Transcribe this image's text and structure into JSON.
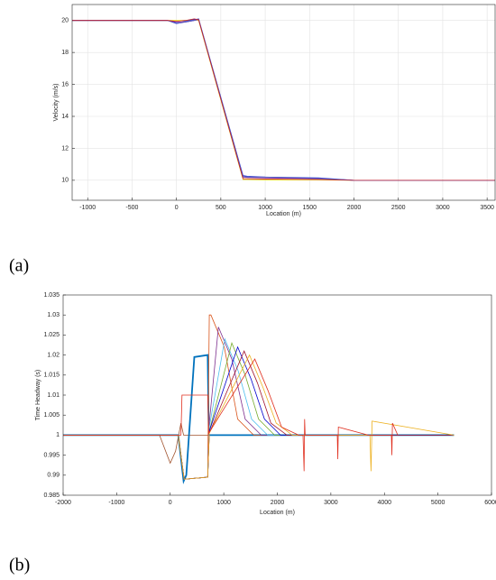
{
  "chart_data": [
    {
      "type": "line",
      "label": "(a)",
      "xlabel": "Location (m)",
      "ylabel": "Velocity (m/s)",
      "grid": true,
      "xlim": [
        -1175,
        3590
      ],
      "ylim": [
        8.75,
        21
      ],
      "xticks": [
        -1000,
        -500,
        0,
        500,
        1000,
        1500,
        2000,
        2500,
        3000,
        3500
      ],
      "yticks": [
        10,
        12,
        14,
        16,
        18,
        20
      ],
      "x": [
        -1175,
        -100,
        0,
        100,
        200,
        250,
        750,
        800,
        1000,
        1600,
        2000,
        2500,
        3590
      ],
      "series": [
        {
          "color": "#f0e000",
          "values": [
            20,
            20,
            20,
            20,
            20.05,
            20,
            10.05,
            10.05,
            10.03,
            10.02,
            10,
            10,
            10
          ]
        },
        {
          "color": "#3040d0",
          "values": [
            20,
            20,
            19.85,
            19.95,
            20.05,
            20.1,
            10.3,
            10.25,
            10.2,
            10.15,
            10,
            10,
            10
          ]
        },
        {
          "color": "#8040a0",
          "values": [
            20,
            20,
            19.9,
            19.9,
            20,
            20.05,
            10.2,
            10.18,
            10.15,
            10.1,
            10,
            10,
            10
          ]
        },
        {
          "color": "#5050c0",
          "values": [
            20,
            20,
            19.8,
            19.9,
            20,
            20.1,
            10.25,
            10.2,
            10.2,
            10.12,
            10,
            10,
            10
          ]
        },
        {
          "color": "#c02030",
          "values": [
            20,
            20,
            19.95,
            20,
            20.1,
            20.05,
            10.1,
            10.1,
            10.08,
            10.05,
            10,
            10,
            10
          ]
        }
      ]
    },
    {
      "type": "line",
      "label": "(b)",
      "xlabel": "Location (m)",
      "ylabel": "Time Headway (s)",
      "grid": false,
      "xlim": [
        -2000,
        6000
      ],
      "ylim": [
        0.985,
        1.035
      ],
      "xticks": [
        -2000,
        -1000,
        0,
        1000,
        2000,
        3000,
        4000,
        5000,
        6000
      ],
      "yticks": [
        0.985,
        0.99,
        0.995,
        1,
        1.005,
        1.01,
        1.015,
        1.02,
        1.025,
        1.03,
        1.035
      ],
      "series": [
        {
          "color": "#a0522d",
          "x": [
            -2000,
            -200,
            0,
            100,
            200,
            250,
            5300
          ],
          "values": [
            1,
            1,
            0.993,
            0.996,
            1.003,
            1,
            1
          ]
        },
        {
          "color": "#0072bd",
          "x": [
            -2000,
            150,
            250,
            300,
            450,
            700,
            720,
            760,
            5300
          ],
          "values": [
            1,
            1,
            0.9885,
            0.99,
            1.0195,
            1.02,
            1,
            1,
            1
          ]
        },
        {
          "color": "#d95319",
          "x": [
            -2000,
            150,
            260,
            700,
            730,
            760,
            1010,
            1260,
            1560,
            5300
          ],
          "values": [
            1,
            1,
            0.989,
            0.9895,
            1.03,
            1.03,
            1.022,
            1.004,
            1,
            1
          ]
        },
        {
          "color": "#7e2f8e",
          "x": [
            -2000,
            150,
            260,
            700,
            730,
            900,
            1150,
            1400,
            1700,
            5300
          ],
          "values": [
            1,
            1,
            0.989,
            0.9895,
            1.003,
            1.027,
            1.019,
            1.004,
            1,
            1
          ]
        },
        {
          "color": "#4dbeee",
          "x": [
            -2000,
            150,
            260,
            700,
            730,
            1020,
            1270,
            1520,
            1820,
            5300
          ],
          "values": [
            1,
            1,
            0.989,
            0.9895,
            1.002,
            1.024,
            1.016,
            1.004,
            1,
            1
          ]
        },
        {
          "color": "#77ac30",
          "x": [
            -2000,
            150,
            260,
            700,
            730,
            1150,
            1400,
            1650,
            1950,
            5300
          ],
          "values": [
            1,
            1,
            0.989,
            0.9895,
            1.001,
            1.023,
            1.015,
            1.004,
            1,
            1
          ]
        },
        {
          "color": "#0000cd",
          "x": [
            -2000,
            150,
            260,
            700,
            730,
            1260,
            1510,
            1760,
            2060,
            5300
          ],
          "values": [
            1,
            1,
            0.989,
            0.9895,
            1.001,
            1.022,
            1.014,
            1.004,
            1,
            1
          ]
        },
        {
          "color": "#a2142f",
          "x": [
            -2000,
            150,
            260,
            700,
            730,
            1380,
            1630,
            1880,
            2180,
            5300
          ],
          "values": [
            1,
            1,
            0.989,
            0.9895,
            1.0005,
            1.021,
            1.013,
            1.003,
            1,
            1
          ]
        },
        {
          "color": "#edb120",
          "x": [
            -2000,
            150,
            260,
            700,
            730,
            1480,
            1730,
            1980,
            2280,
            3730,
            3750,
            3770,
            5300
          ],
          "values": [
            1,
            1,
            0.989,
            0.9895,
            1.0005,
            1.02,
            1.012,
            1.003,
            1,
            1,
            0.991,
            1.0035,
            1
          ]
        },
        {
          "color": "#e03020",
          "x": [
            -2000,
            200,
            220,
            700,
            720,
            1580,
            1830,
            2080,
            2400,
            2480,
            2500,
            2510,
            2520,
            3120,
            3130,
            3140,
            3700,
            4130,
            4140,
            4150,
            4250
          ],
          "values": [
            1,
            1,
            1.01,
            1.01,
            1.0005,
            1.019,
            1.011,
            1.002,
            1,
            1,
            0.991,
            1.004,
            1,
            1,
            0.994,
            1.002,
            1,
            1,
            0.995,
            1.003,
            1
          ]
        }
      ]
    }
  ]
}
